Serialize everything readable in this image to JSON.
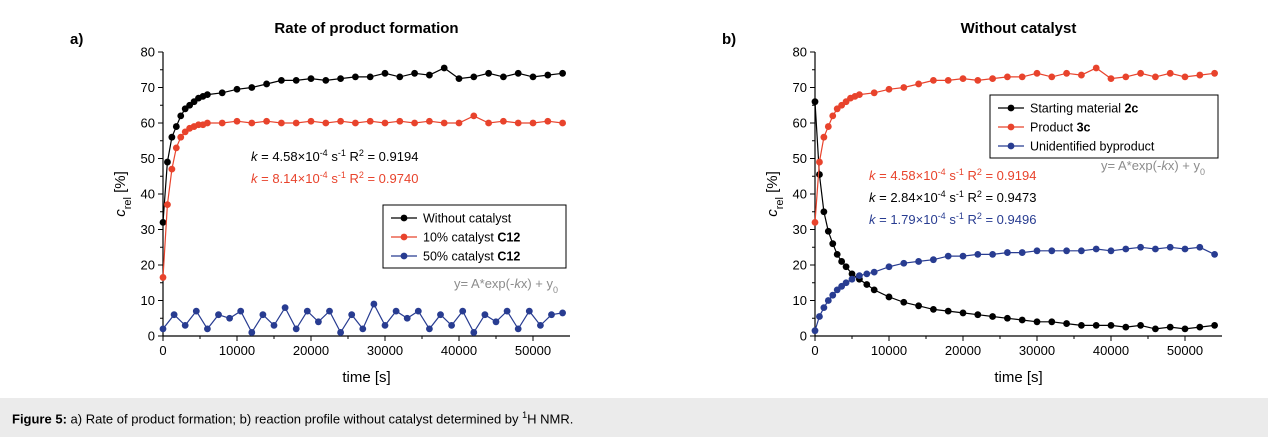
{
  "caption": {
    "label": "Figure 5:",
    "text_a": "a) Rate of product formation; b) reaction profile without catalyst determined by ",
    "sup": "1",
    "text_b": "H NMR."
  },
  "colors": {
    "black": "#000000",
    "red": "#e8432c",
    "blue": "#283c91",
    "gray": "#8c8c8c"
  },
  "chart_data": [
    {
      "type": "line",
      "panel_label": "a)",
      "title": "Rate of product formation",
      "xlabel": "time [s]",
      "ylabel": "c_rel [%]",
      "xlim": [
        0,
        55000
      ],
      "ylim": [
        0,
        80
      ],
      "xticks": [
        0,
        10000,
        20000,
        30000,
        40000,
        50000
      ],
      "yticks": [
        0,
        10,
        20,
        30,
        40,
        50,
        60,
        70,
        80
      ],
      "legend": "lower-right",
      "equation": "y= A*exp(-kx) + y0",
      "fits": [
        {
          "k": "4.58×10-4 s-1",
          "r2": "0.9194",
          "color": "black"
        },
        {
          "k": "8.14×10-4 s-1",
          "r2": "0.9740",
          "color": "red"
        }
      ],
      "series": [
        {
          "name": "Without catalyst",
          "color": "black",
          "x": [
            0,
            600,
            1200,
            1800,
            2400,
            3000,
            3600,
            4200,
            4800,
            5400,
            6000,
            8000,
            10000,
            12000,
            14000,
            16000,
            18000,
            20000,
            22000,
            24000,
            26000,
            28000,
            30000,
            32000,
            34000,
            36000,
            38000,
            40000,
            42000,
            44000,
            46000,
            48000,
            50000,
            52000,
            54000
          ],
          "y": [
            32,
            49,
            56,
            59,
            62,
            64,
            65,
            66,
            67,
            67.5,
            68,
            68.5,
            69.5,
            70,
            71,
            72,
            72,
            72.5,
            72,
            72.5,
            73,
            73,
            74,
            73,
            74,
            73.5,
            75.5,
            72.5,
            73,
            74,
            73,
            74,
            73,
            73.5,
            74
          ]
        },
        {
          "name": "10% catalyst C12",
          "color": "red",
          "x": [
            0,
            600,
            1200,
            1800,
            2400,
            3000,
            3600,
            4200,
            4800,
            5400,
            6000,
            8000,
            10000,
            12000,
            14000,
            16000,
            18000,
            20000,
            22000,
            24000,
            26000,
            28000,
            30000,
            32000,
            34000,
            36000,
            38000,
            40000,
            42000,
            44000,
            46000,
            48000,
            50000,
            52000,
            54000
          ],
          "y": [
            16.5,
            37,
            47,
            53,
            56,
            57.5,
            58.5,
            59,
            59.5,
            59.5,
            60,
            60,
            60.5,
            60,
            60.5,
            60,
            60,
            60.5,
            60,
            60.5,
            60,
            60.5,
            60,
            60.5,
            60,
            60.5,
            60,
            60,
            62,
            60,
            60.5,
            60,
            60,
            60.5,
            60
          ]
        },
        {
          "name": "50% catalyst C12",
          "color": "blue",
          "x": [
            0,
            1500,
            3000,
            4500,
            6000,
            7500,
            9000,
            10500,
            12000,
            13500,
            15000,
            16500,
            18000,
            19500,
            21000,
            22500,
            24000,
            25500,
            27000,
            28500,
            30000,
            31500,
            33000,
            34500,
            36000,
            37500,
            39000,
            40500,
            42000,
            43500,
            45000,
            46500,
            48000,
            49500,
            51000,
            52500,
            54000
          ],
          "y": [
            2,
            6,
            3,
            7,
            2,
            6,
            5,
            7,
            1,
            6,
            3,
            8,
            2,
            7,
            4,
            7,
            1,
            6,
            2,
            9,
            3,
            7,
            5,
            7,
            2,
            6,
            3,
            7,
            1,
            6,
            4,
            7,
            2,
            7,
            3,
            6,
            6.5
          ]
        }
      ]
    },
    {
      "type": "line",
      "panel_label": "b)",
      "title": "Without catalyst",
      "xlabel": "time [s]",
      "ylabel": "c_rel [%]",
      "xlim": [
        0,
        55000
      ],
      "ylim": [
        0,
        80
      ],
      "xticks": [
        0,
        10000,
        20000,
        30000,
        40000,
        50000
      ],
      "yticks": [
        0,
        10,
        20,
        30,
        40,
        50,
        60,
        70,
        80
      ],
      "legend": "top-right",
      "equation": "y= A*exp(-kx) + y0",
      "fits": [
        {
          "k": "4.58×10-4 s-1",
          "r2": "0.9194",
          "color": "red"
        },
        {
          "k": "2.84×10-4 s-1",
          "r2": "0.9473",
          "color": "black"
        },
        {
          "k": "1.79×10-4 s-1",
          "r2": "0.9496",
          "color": "blue"
        }
      ],
      "series": [
        {
          "name": "Starting material 2c",
          "color": "black",
          "x": [
            0,
            600,
            1200,
            1800,
            2400,
            3000,
            3600,
            4200,
            5000,
            6000,
            7000,
            8000,
            10000,
            12000,
            14000,
            16000,
            18000,
            20000,
            22000,
            24000,
            26000,
            28000,
            30000,
            32000,
            34000,
            36000,
            38000,
            40000,
            42000,
            44000,
            46000,
            48000,
            50000,
            52000,
            54000
          ],
          "y": [
            66,
            45.5,
            35,
            29.5,
            26,
            23,
            21,
            19.5,
            17.5,
            16,
            14.5,
            13,
            11,
            9.5,
            8.5,
            7.5,
            7,
            6.5,
            6,
            5.5,
            5,
            4.5,
            4,
            4,
            3.5,
            3,
            3,
            3,
            2.5,
            3,
            2,
            2.5,
            2,
            2.5,
            3
          ]
        },
        {
          "name": "Product 3c",
          "color": "red",
          "x": [
            0,
            600,
            1200,
            1800,
            2400,
            3000,
            3600,
            4200,
            4800,
            5400,
            6000,
            8000,
            10000,
            12000,
            14000,
            16000,
            18000,
            20000,
            22000,
            24000,
            26000,
            28000,
            30000,
            32000,
            34000,
            36000,
            38000,
            40000,
            42000,
            44000,
            46000,
            48000,
            50000,
            52000,
            54000
          ],
          "y": [
            32,
            49,
            56,
            59,
            62,
            64,
            65,
            66,
            67,
            67.5,
            68,
            68.5,
            69.5,
            70,
            71,
            72,
            72,
            72.5,
            72,
            72.5,
            73,
            73,
            74,
            73,
            74,
            73.5,
            75.5,
            72.5,
            73,
            74,
            73,
            74,
            73,
            73.5,
            74
          ]
        },
        {
          "name": "Unidentified byproduct",
          "color": "blue",
          "x": [
            0,
            600,
            1200,
            1800,
            2400,
            3000,
            3600,
            4200,
            5000,
            6000,
            7000,
            8000,
            10000,
            12000,
            14000,
            16000,
            18000,
            20000,
            22000,
            24000,
            26000,
            28000,
            30000,
            32000,
            34000,
            36000,
            38000,
            40000,
            42000,
            44000,
            46000,
            48000,
            50000,
            52000,
            54000
          ],
          "y": [
            1.5,
            5.5,
            8,
            10,
            11.5,
            13,
            14,
            15,
            16,
            17,
            17.5,
            18,
            19.5,
            20.5,
            21,
            21.5,
            22.5,
            22.5,
            23,
            23,
            23.5,
            23.5,
            24,
            24,
            24,
            24,
            24.5,
            24,
            24.5,
            25,
            24.5,
            25,
            24.5,
            25,
            23
          ]
        }
      ]
    }
  ]
}
